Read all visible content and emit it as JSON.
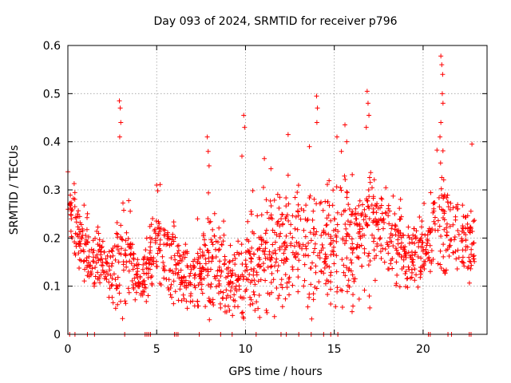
{
  "chart_data": {
    "type": "scatter",
    "title": "Day 093 of 2024, SRMTID for receiver p796",
    "xlabel": "GPS time / hours",
    "ylabel": "SRMTID / TECUs",
    "xlim": [
      0,
      23.6
    ],
    "ylim": [
      0,
      0.6
    ],
    "x_ticks": [
      0,
      5,
      10,
      15,
      20
    ],
    "y_ticks": [
      0,
      0.1,
      0.2,
      0.3,
      0.4,
      0.5,
      0.6
    ],
    "x_tick_labels": [
      "0",
      "5",
      "10",
      "15",
      "20"
    ],
    "y_tick_labels": [
      "0",
      "0.1",
      "0.2",
      "0.3",
      "0.4",
      "0.5",
      "0.6"
    ],
    "grid": true,
    "marker": "+",
    "series_color": "#ff0000",
    "envelope": {
      "description": "approximate centre (mid) and vertical spread of the point cloud versus time",
      "x": [
        0.0,
        0.5,
        1.0,
        1.5,
        2.0,
        2.5,
        3.0,
        3.5,
        4.0,
        4.5,
        5.0,
        5.5,
        6.0,
        6.5,
        7.0,
        7.5,
        8.0,
        8.5,
        9.0,
        9.5,
        10.0,
        10.5,
        11.0,
        11.5,
        12.0,
        12.5,
        13.0,
        13.5,
        14.0,
        14.5,
        15.0,
        15.5,
        16.0,
        16.5,
        17.0,
        17.5,
        18.0,
        18.5,
        19.0,
        19.5,
        20.0,
        20.5,
        21.0,
        21.5,
        22.0,
        22.5,
        22.9
      ],
      "mid": [
        0.26,
        0.22,
        0.17,
        0.16,
        0.15,
        0.12,
        0.16,
        0.15,
        0.11,
        0.14,
        0.21,
        0.17,
        0.16,
        0.12,
        0.12,
        0.13,
        0.17,
        0.14,
        0.12,
        0.11,
        0.13,
        0.16,
        0.18,
        0.18,
        0.18,
        0.18,
        0.17,
        0.17,
        0.19,
        0.17,
        0.2,
        0.21,
        0.2,
        0.22,
        0.24,
        0.22,
        0.24,
        0.19,
        0.17,
        0.16,
        0.18,
        0.21,
        0.27,
        0.2,
        0.22,
        0.19,
        0.18
      ],
      "spread": [
        0.05,
        0.05,
        0.04,
        0.04,
        0.03,
        0.04,
        0.08,
        0.05,
        0.03,
        0.04,
        0.06,
        0.05,
        0.05,
        0.04,
        0.04,
        0.05,
        0.08,
        0.06,
        0.04,
        0.04,
        0.06,
        0.08,
        0.08,
        0.08,
        0.08,
        0.08,
        0.07,
        0.07,
        0.09,
        0.07,
        0.08,
        0.09,
        0.08,
        0.07,
        0.08,
        0.06,
        0.06,
        0.05,
        0.05,
        0.04,
        0.05,
        0.06,
        0.09,
        0.05,
        0.06,
        0.05,
        0.04
      ]
    },
    "spikes": [
      {
        "x": 2.9,
        "y": 0.485
      },
      {
        "x": 2.95,
        "y": 0.47
      },
      {
        "x": 2.98,
        "y": 0.44
      },
      {
        "x": 2.92,
        "y": 0.41
      },
      {
        "x": 5.0,
        "y": 0.31
      },
      {
        "x": 7.3,
        "y": 0.24
      },
      {
        "x": 7.85,
        "y": 0.41
      },
      {
        "x": 7.9,
        "y": 0.38
      },
      {
        "x": 7.95,
        "y": 0.35
      },
      {
        "x": 9.9,
        "y": 0.455
      },
      {
        "x": 9.95,
        "y": 0.43
      },
      {
        "x": 9.8,
        "y": 0.37
      },
      {
        "x": 12.4,
        "y": 0.415
      },
      {
        "x": 13.6,
        "y": 0.39
      },
      {
        "x": 14.0,
        "y": 0.495
      },
      {
        "x": 14.05,
        "y": 0.47
      },
      {
        "x": 14.02,
        "y": 0.44
      },
      {
        "x": 15.15,
        "y": 0.41
      },
      {
        "x": 15.6,
        "y": 0.435
      },
      {
        "x": 15.7,
        "y": 0.4
      },
      {
        "x": 15.4,
        "y": 0.38
      },
      {
        "x": 16.85,
        "y": 0.505
      },
      {
        "x": 16.9,
        "y": 0.48
      },
      {
        "x": 16.95,
        "y": 0.455
      },
      {
        "x": 16.8,
        "y": 0.43
      },
      {
        "x": 21.0,
        "y": 0.578
      },
      {
        "x": 21.05,
        "y": 0.56
      },
      {
        "x": 21.1,
        "y": 0.54
      },
      {
        "x": 21.08,
        "y": 0.5
      },
      {
        "x": 21.12,
        "y": 0.48
      },
      {
        "x": 21.0,
        "y": 0.44
      },
      {
        "x": 20.95,
        "y": 0.41
      },
      {
        "x": 22.75,
        "y": 0.395
      },
      {
        "x": 9.1,
        "y": 0.05
      },
      {
        "x": 10.8,
        "y": 0.035
      },
      {
        "x": 17.0,
        "y": 0.055
      },
      {
        "x": 8.6,
        "y": 0.055
      }
    ],
    "baseline_x": [
      0.1,
      0.4,
      1.1,
      1.5,
      3.2,
      4.35,
      4.45,
      4.55,
      4.65,
      6.0,
      6.1,
      6.2,
      7.4,
      8.6,
      9.25,
      10.6,
      12.0,
      12.3,
      13.0,
      13.7,
      14.4,
      14.8,
      15.2,
      20.3,
      20.4,
      21.4,
      21.6,
      22.6,
      22.7
    ]
  }
}
